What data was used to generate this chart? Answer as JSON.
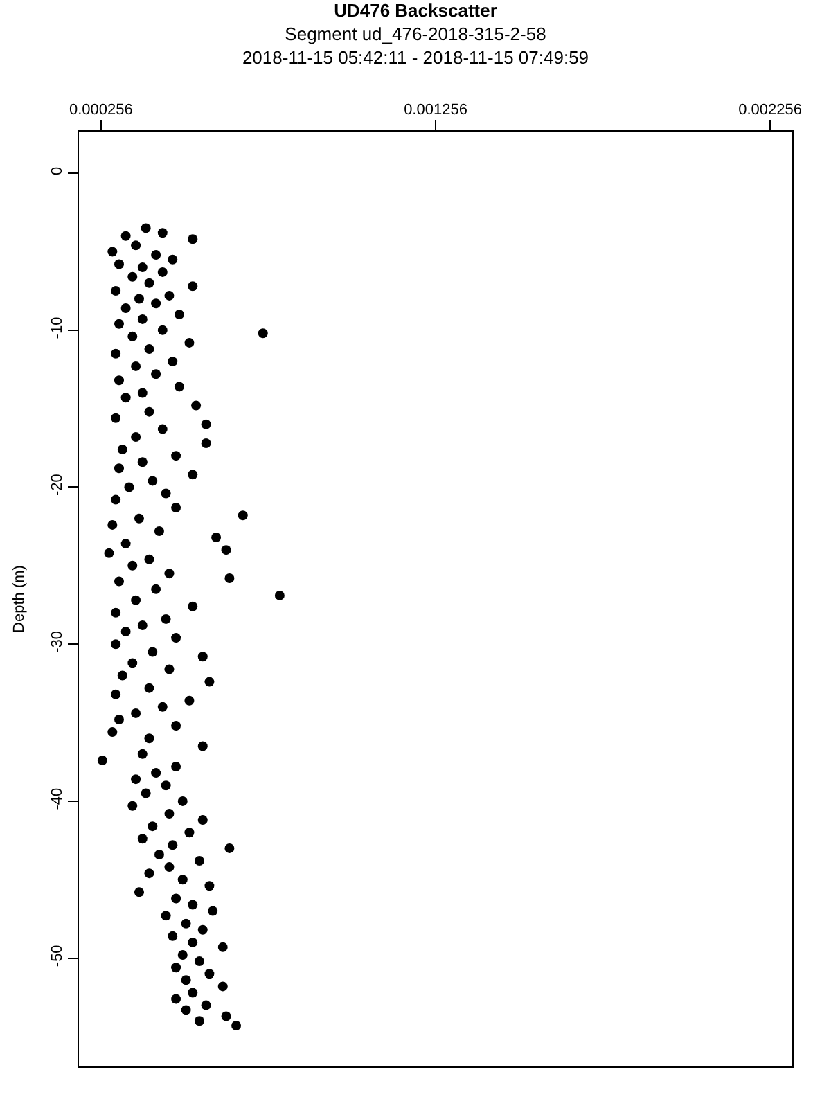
{
  "chart_data": {
    "type": "scatter",
    "title": "UD476 Backscatter",
    "subtitle": "Segment ud_476-2018-315-2-58\n2018-11-15 05:42:11 - 2018-11-15 07:49:59",
    "ylabel": "Depth (m)",
    "xlim": [
      0.00019,
      0.002322
    ],
    "xticks": [
      0.000256,
      0.001256,
      0.002256
    ],
    "ylim": [
      -56.9,
      2.65
    ],
    "yticks": [
      0,
      -10,
      -20,
      -30,
      -40,
      -50
    ],
    "marker": "circle",
    "series": [
      {
        "color": "#000000",
        "x": [
          0.00039,
          0.00044,
          0.00033,
          0.00053,
          0.00036,
          0.00029,
          0.00042,
          0.00047,
          0.00031,
          0.00038,
          0.00044,
          0.00035,
          0.0004,
          0.00053,
          0.0003,
          0.00046,
          0.00037,
          0.00042,
          0.00033,
          0.00049,
          0.00038,
          0.00031,
          0.00044,
          0.00074,
          0.00035,
          0.00052,
          0.0004,
          0.0003,
          0.00047,
          0.00036,
          0.00042,
          0.00031,
          0.00049,
          0.00038,
          0.00033,
          0.00054,
          0.0004,
          0.0003,
          0.00057,
          0.00044,
          0.00036,
          0.00057,
          0.00032,
          0.00048,
          0.00038,
          0.00031,
          0.00053,
          0.00041,
          0.00034,
          0.00045,
          0.0003,
          0.00048,
          0.00068,
          0.00037,
          0.00029,
          0.00043,
          0.0006,
          0.00033,
          0.00063,
          0.00028,
          0.0004,
          0.00035,
          0.00046,
          0.00064,
          0.00031,
          0.00042,
          0.00079,
          0.00036,
          0.00053,
          0.0003,
          0.00045,
          0.00038,
          0.00033,
          0.00048,
          0.0003,
          0.00041,
          0.00056,
          0.00035,
          0.00046,
          0.00032,
          0.00058,
          0.0004,
          0.0003,
          0.00052,
          0.00044,
          0.00036,
          0.00031,
          0.00048,
          0.00029,
          0.0004,
          0.00056,
          0.00038,
          0.00026,
          0.00048,
          0.00042,
          0.00036,
          0.00045,
          0.00039,
          0.0005,
          0.00035,
          0.00046,
          0.00056,
          0.00041,
          0.00052,
          0.00038,
          0.00047,
          0.00064,
          0.00043,
          0.00055,
          0.00046,
          0.0004,
          0.0005,
          0.00058,
          0.00037,
          0.00048,
          0.00053,
          0.00059,
          0.00045,
          0.00051,
          0.00056,
          0.00047,
          0.00053,
          0.00062,
          0.0005,
          0.00055,
          0.00048,
          0.00058,
          0.00051,
          0.00062,
          0.00053,
          0.00048,
          0.00057,
          0.00051,
          0.00063,
          0.00055,
          0.00066
        ],
        "values": [
          -3.5,
          -3.8,
          -4.0,
          -4.2,
          -4.6,
          -5.0,
          -5.2,
          -5.5,
          -5.8,
          -6.0,
          -6.3,
          -6.6,
          -7.0,
          -7.2,
          -7.5,
          -7.8,
          -8.0,
          -8.3,
          -8.6,
          -9.0,
          -9.3,
          -9.6,
          -10.0,
          -10.2,
          -10.4,
          -10.8,
          -11.2,
          -11.5,
          -12.0,
          -12.3,
          -12.8,
          -13.2,
          -13.6,
          -14.0,
          -14.3,
          -14.8,
          -15.2,
          -15.6,
          -16.0,
          -16.3,
          -16.8,
          -17.2,
          -17.6,
          -18.0,
          -18.4,
          -18.8,
          -19.2,
          -19.6,
          -20.0,
          -20.4,
          -20.8,
          -21.3,
          -21.8,
          -22.0,
          -22.4,
          -22.8,
          -23.2,
          -23.6,
          -24.0,
          -24.2,
          -24.6,
          -25.0,
          -25.5,
          -25.8,
          -26.0,
          -26.5,
          -26.9,
          -27.2,
          -27.6,
          -28.0,
          -28.4,
          -28.8,
          -29.2,
          -29.6,
          -30.0,
          -30.5,
          -30.8,
          -31.2,
          -31.6,
          -32.0,
          -32.4,
          -32.8,
          -33.2,
          -33.6,
          -34.0,
          -34.4,
          -34.8,
          -35.2,
          -35.6,
          -36.0,
          -36.5,
          -37.0,
          -37.4,
          -37.8,
          -38.2,
          -38.6,
          -39.0,
          -39.5,
          -40.0,
          -40.3,
          -40.8,
          -41.2,
          -41.6,
          -42.0,
          -42.4,
          -42.8,
          -43.0,
          -43.4,
          -43.8,
          -44.2,
          -44.6,
          -45.0,
          -45.4,
          -45.8,
          -46.2,
          -46.6,
          -47.0,
          -47.3,
          -47.8,
          -48.2,
          -48.6,
          -49.0,
          -49.3,
          -49.8,
          -50.2,
          -50.6,
          -51.0,
          -51.4,
          -51.8,
          -52.2,
          -52.6,
          -53.0,
          -53.3,
          -53.7,
          -54.0,
          -54.3
        ]
      }
    ]
  }
}
